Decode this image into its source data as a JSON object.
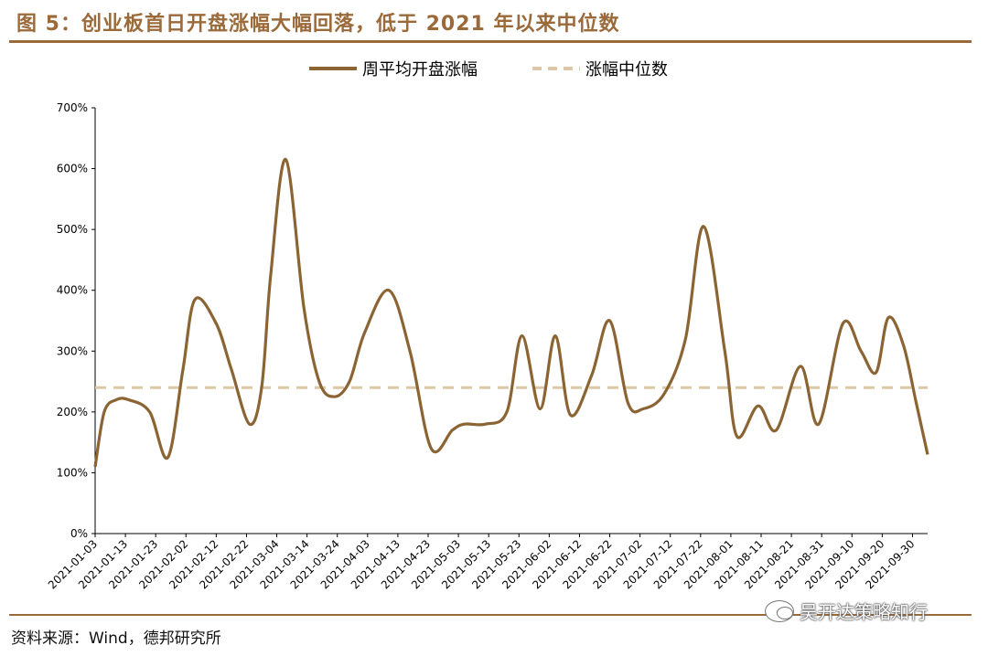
{
  "figure": {
    "title": "图 5：创业板首日开盘涨幅大幅回落，低于 2021 年以来中位数",
    "source": "资料来源：Wind，德邦研究所",
    "watermark": "吴开达策略知行"
  },
  "colors": {
    "accent": "#9a6a3a",
    "series_line": "#8b6434",
    "median_line": "#dcc7a6"
  },
  "chart_data": {
    "type": "line",
    "title": "",
    "xlabel": "",
    "ylabel": "",
    "ylim": [
      0,
      700
    ],
    "y_ticks": [
      "0%",
      "100%",
      "200%",
      "300%",
      "400%",
      "500%",
      "600%",
      "700%"
    ],
    "grid": false,
    "legend_position": "top-center",
    "x_tick_labels": [
      "2021-01-03",
      "2021-01-13",
      "2021-01-23",
      "2021-02-02",
      "2021-02-12",
      "2021-02-22",
      "2021-03-04",
      "2021-03-14",
      "2021-03-24",
      "2021-04-03",
      "2021-04-13",
      "2021-04-23",
      "2021-05-03",
      "2021-05-13",
      "2021-05-23",
      "2021-06-02",
      "2021-06-12",
      "2021-06-22",
      "2021-07-02",
      "2021-07-12",
      "2021-07-22",
      "2021-08-01",
      "2021-08-11",
      "2021-08-21",
      "2021-08-31",
      "2021-09-10",
      "2021-09-20",
      "2021-09-30"
    ],
    "series": [
      {
        "name": "周平均开盘涨幅",
        "style": "solid",
        "points": [
          [
            "2021-01-03",
            110
          ],
          [
            "2021-01-06",
            200
          ],
          [
            "2021-01-10",
            220
          ],
          [
            "2021-01-14",
            220
          ],
          [
            "2021-01-21",
            200
          ],
          [
            "2021-01-27",
            125
          ],
          [
            "2021-02-01",
            270
          ],
          [
            "2021-02-05",
            385
          ],
          [
            "2021-02-12",
            345
          ],
          [
            "2021-02-17",
            270
          ],
          [
            "2021-02-23",
            180
          ],
          [
            "2021-02-27",
            240
          ],
          [
            "2021-03-02",
            425
          ],
          [
            "2021-03-07",
            615
          ],
          [
            "2021-03-13",
            370
          ],
          [
            "2021-03-18",
            250
          ],
          [
            "2021-03-23",
            225
          ],
          [
            "2021-03-28",
            250
          ],
          [
            "2021-04-02",
            330
          ],
          [
            "2021-04-10",
            400
          ],
          [
            "2021-04-17",
            300
          ],
          [
            "2021-04-24",
            140
          ],
          [
            "2021-05-01",
            170
          ],
          [
            "2021-05-05",
            180
          ],
          [
            "2021-05-12",
            180
          ],
          [
            "2021-05-19",
            200
          ],
          [
            "2021-05-24",
            325
          ],
          [
            "2021-05-30",
            205
          ],
          [
            "2021-06-04",
            325
          ],
          [
            "2021-06-09",
            195
          ],
          [
            "2021-06-16",
            260
          ],
          [
            "2021-06-22",
            350
          ],
          [
            "2021-06-28",
            215
          ],
          [
            "2021-07-03",
            205
          ],
          [
            "2021-07-10",
            230
          ],
          [
            "2021-07-17",
            320
          ],
          [
            "2021-07-23",
            505
          ],
          [
            "2021-07-30",
            300
          ],
          [
            "2021-08-03",
            160
          ],
          [
            "2021-08-10",
            210
          ],
          [
            "2021-08-16",
            170
          ],
          [
            "2021-08-24",
            275
          ],
          [
            "2021-08-30",
            180
          ],
          [
            "2021-09-07",
            345
          ],
          [
            "2021-09-13",
            300
          ],
          [
            "2021-09-18",
            265
          ],
          [
            "2021-09-22",
            355
          ],
          [
            "2021-09-27",
            310
          ],
          [
            "2021-10-01",
            220
          ],
          [
            "2021-10-05",
            130
          ]
        ]
      },
      {
        "name": "涨幅中位数",
        "style": "dashed",
        "value": 240
      }
    ]
  }
}
